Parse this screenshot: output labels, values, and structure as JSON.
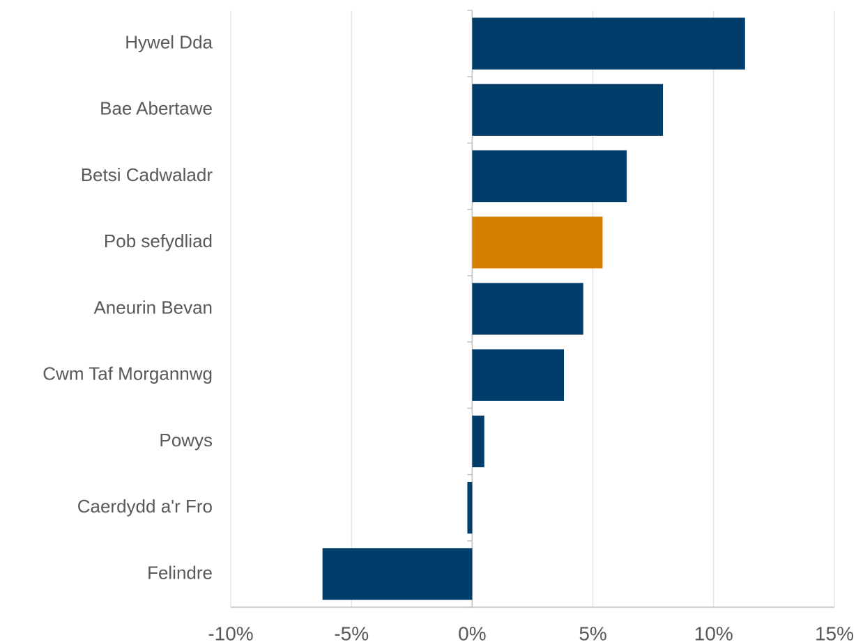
{
  "chart_data": {
    "type": "hbar",
    "categories": [
      "Hywel Dda",
      "Bae Abertawe",
      "Betsi Cadwaladr",
      "Pob sefydliad",
      "Aneurin Bevan",
      "Cwm Taf Morgannwg",
      "Powys",
      "Caerdydd a'r Fro",
      "Felindre"
    ],
    "values": [
      11.3,
      7.9,
      6.4,
      5.4,
      4.6,
      3.8,
      0.5,
      -0.2,
      -6.2
    ],
    "colors": [
      "#003d6b",
      "#003d6b",
      "#003d6b",
      "#d57f00",
      "#003d6b",
      "#003d6b",
      "#003d6b",
      "#003d6b",
      "#003d6b"
    ],
    "xlim": [
      -10,
      15
    ],
    "xticks": [
      {
        "value": -10,
        "label": "-10%"
      },
      {
        "value": -5,
        "label": "-5%"
      },
      {
        "value": 0,
        "label": "0%"
      },
      {
        "value": 5,
        "label": "5%"
      },
      {
        "value": 10,
        "label": "10%"
      },
      {
        "value": 15,
        "label": "15%"
      }
    ],
    "grid": true
  }
}
